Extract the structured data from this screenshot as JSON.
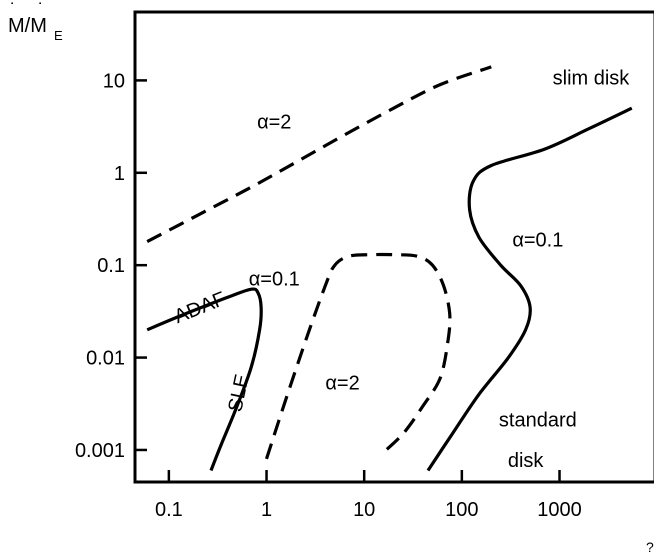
{
  "chart_data": {
    "type": "line",
    "ylabel": "Ṁ/Ṁ_E",
    "ylabel_main": "M/M",
    "ylabel_sub": "E",
    "ylabel_dot": "˙",
    "xlabel_fragment": "?",
    "xscale": "log",
    "yscale": "log",
    "xlim": [
      0.045,
      9500
    ],
    "ylim": [
      0.00045,
      55
    ],
    "x_ticks": [
      {
        "value": 0.1,
        "label": "0.1"
      },
      {
        "value": 1,
        "label": "1"
      },
      {
        "value": 10,
        "label": "10"
      },
      {
        "value": 100,
        "label": "100"
      },
      {
        "value": 1000,
        "label": "1000"
      }
    ],
    "y_ticks": [
      {
        "value": 10,
        "label": "10"
      },
      {
        "value": 1,
        "label": "1"
      },
      {
        "value": 0.1,
        "label": "0.1"
      },
      {
        "value": 0.01,
        "label": "0.01"
      },
      {
        "value": 0.001,
        "label": "0.001"
      }
    ],
    "grid": false,
    "curves": [
      {
        "id": "alpha2-upper",
        "style": "dashed",
        "x": [
          0.06,
          0.2,
          0.7,
          2,
          6,
          20,
          60,
          200
        ],
        "y": [
          0.18,
          0.35,
          0.7,
          1.3,
          2.5,
          5,
          9,
          14
        ]
      },
      {
        "id": "adaf-sle-alpha01",
        "style": "solid",
        "x": [
          0.06,
          0.15,
          0.4,
          0.7,
          0.82,
          0.88,
          0.85,
          0.7,
          0.5,
          0.35,
          0.27
        ],
        "y": [
          0.02,
          0.03,
          0.045,
          0.055,
          0.05,
          0.035,
          0.02,
          0.008,
          0.003,
          0.0012,
          0.0006
        ]
      },
      {
        "id": "alpha2-middle",
        "style": "dashed",
        "x": [
          1,
          1.5,
          2.5,
          4,
          5,
          7,
          12,
          20,
          35,
          50,
          65,
          75,
          72,
          60,
          40,
          25,
          15
        ],
        "y": [
          0.0008,
          0.003,
          0.015,
          0.06,
          0.1,
          0.125,
          0.13,
          0.13,
          0.125,
          0.1,
          0.06,
          0.03,
          0.015,
          0.006,
          0.003,
          0.0015,
          0.0009
        ]
      },
      {
        "id": "slim-standard-alpha01",
        "style": "solid",
        "x": [
          45,
          80,
          150,
          300,
          450,
          500,
          400,
          250,
          150,
          120,
          130,
          200,
          700,
          2000,
          5500
        ],
        "y": [
          0.0006,
          0.0015,
          0.004,
          0.01,
          0.02,
          0.035,
          0.06,
          0.1,
          0.2,
          0.4,
          0.8,
          1.2,
          1.8,
          3,
          5
        ]
      }
    ],
    "annotations": [
      {
        "id": "alpha2-upper-label",
        "text": "α=2",
        "x": 1.2,
        "y": 3.0
      },
      {
        "id": "slim-disk-label",
        "text": "slim disk",
        "x": 2100,
        "y": 9.0
      },
      {
        "id": "alpha01-right-label",
        "text": "α=0.1",
        "x": 600,
        "y": 0.16
      },
      {
        "id": "alpha01-left-label",
        "text": "α=0.1",
        "x": 1.2,
        "y": 0.06
      },
      {
        "id": "adaf-label",
        "text": "ADAF",
        "x": 0.22,
        "y": 0.03
      },
      {
        "id": "sle-label",
        "text": "SLE",
        "x": 0.6,
        "y": 0.004
      },
      {
        "id": "alpha2-middle-label",
        "text": "α=2",
        "x": 6,
        "y": 0.0045
      },
      {
        "id": "standard-label",
        "text": "standard",
        "x": 600,
        "y": 0.0018
      },
      {
        "id": "disk-label",
        "text": "disk",
        "x": 450,
        "y": 0.00065
      }
    ]
  }
}
